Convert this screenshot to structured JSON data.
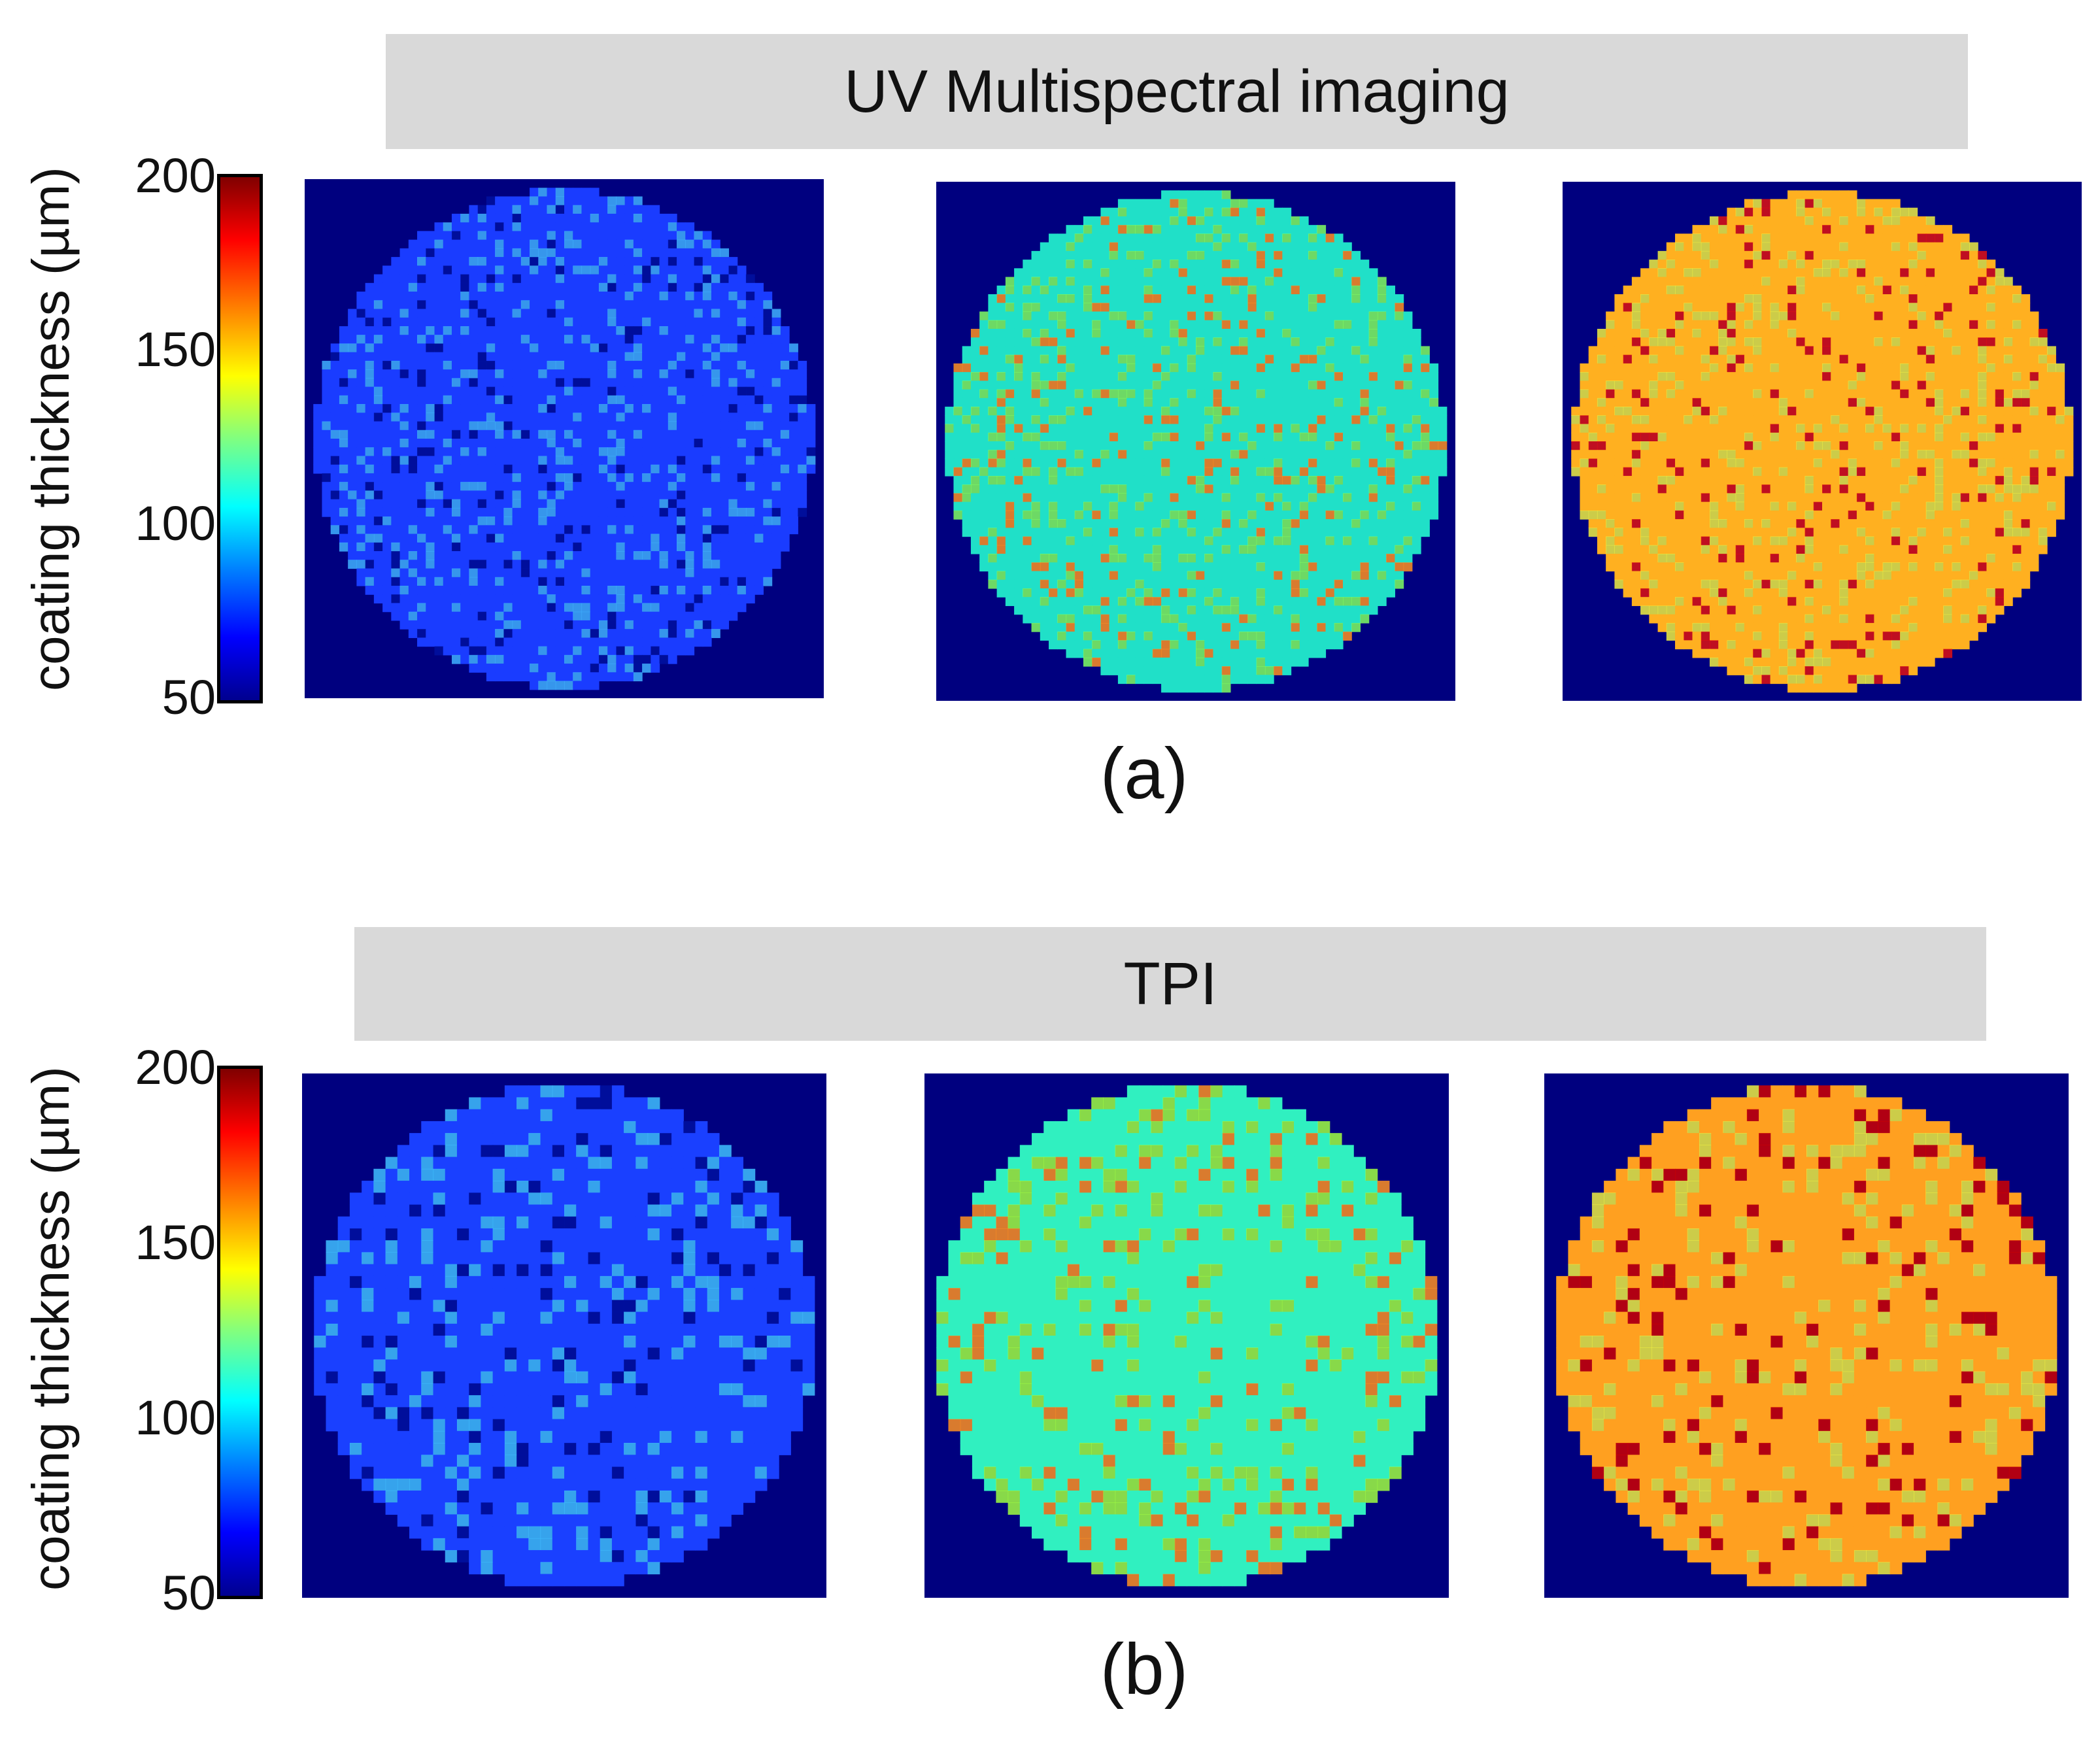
{
  "figure": {
    "panel_a": {
      "banner": "UV Multispectral imaging",
      "caption": "(a)",
      "colorbar_label": "coating thickness (µm)",
      "ticks": [
        "200",
        "150",
        "100",
        "50"
      ]
    },
    "panel_b": {
      "banner": "TPI",
      "caption": "(b)",
      "colorbar_label": "coating thickness (µm)",
      "ticks": [
        "200",
        "150",
        "100",
        "50"
      ]
    }
  },
  "colorbar": {
    "min": 50,
    "max": 200,
    "colormap": "jet"
  },
  "maps": [
    {
      "id": "a1",
      "background": "#00007f",
      "base": "#1a3cff",
      "spot": "#0010a0",
      "hi": "#40b0ff"
    },
    {
      "id": "a2",
      "background": "#00007f",
      "base": "#20e0c8",
      "spot": "#ff9020",
      "hi": "#80ff60"
    },
    {
      "id": "a3",
      "background": "#00007f",
      "base": "#ffb020",
      "spot": "#e01010",
      "hi": "#f0f040"
    },
    {
      "id": "b1",
      "background": "#00007f",
      "base": "#1a40ff",
      "spot": "#0010a0",
      "hi": "#40c0ff"
    },
    {
      "id": "b2",
      "background": "#00007f",
      "base": "#30f0c0",
      "spot": "#ff9020",
      "hi": "#a0ff40"
    },
    {
      "id": "b3",
      "background": "#00007f",
      "base": "#ffa020",
      "spot": "#d00000",
      "hi": "#f0f040"
    }
  ]
}
